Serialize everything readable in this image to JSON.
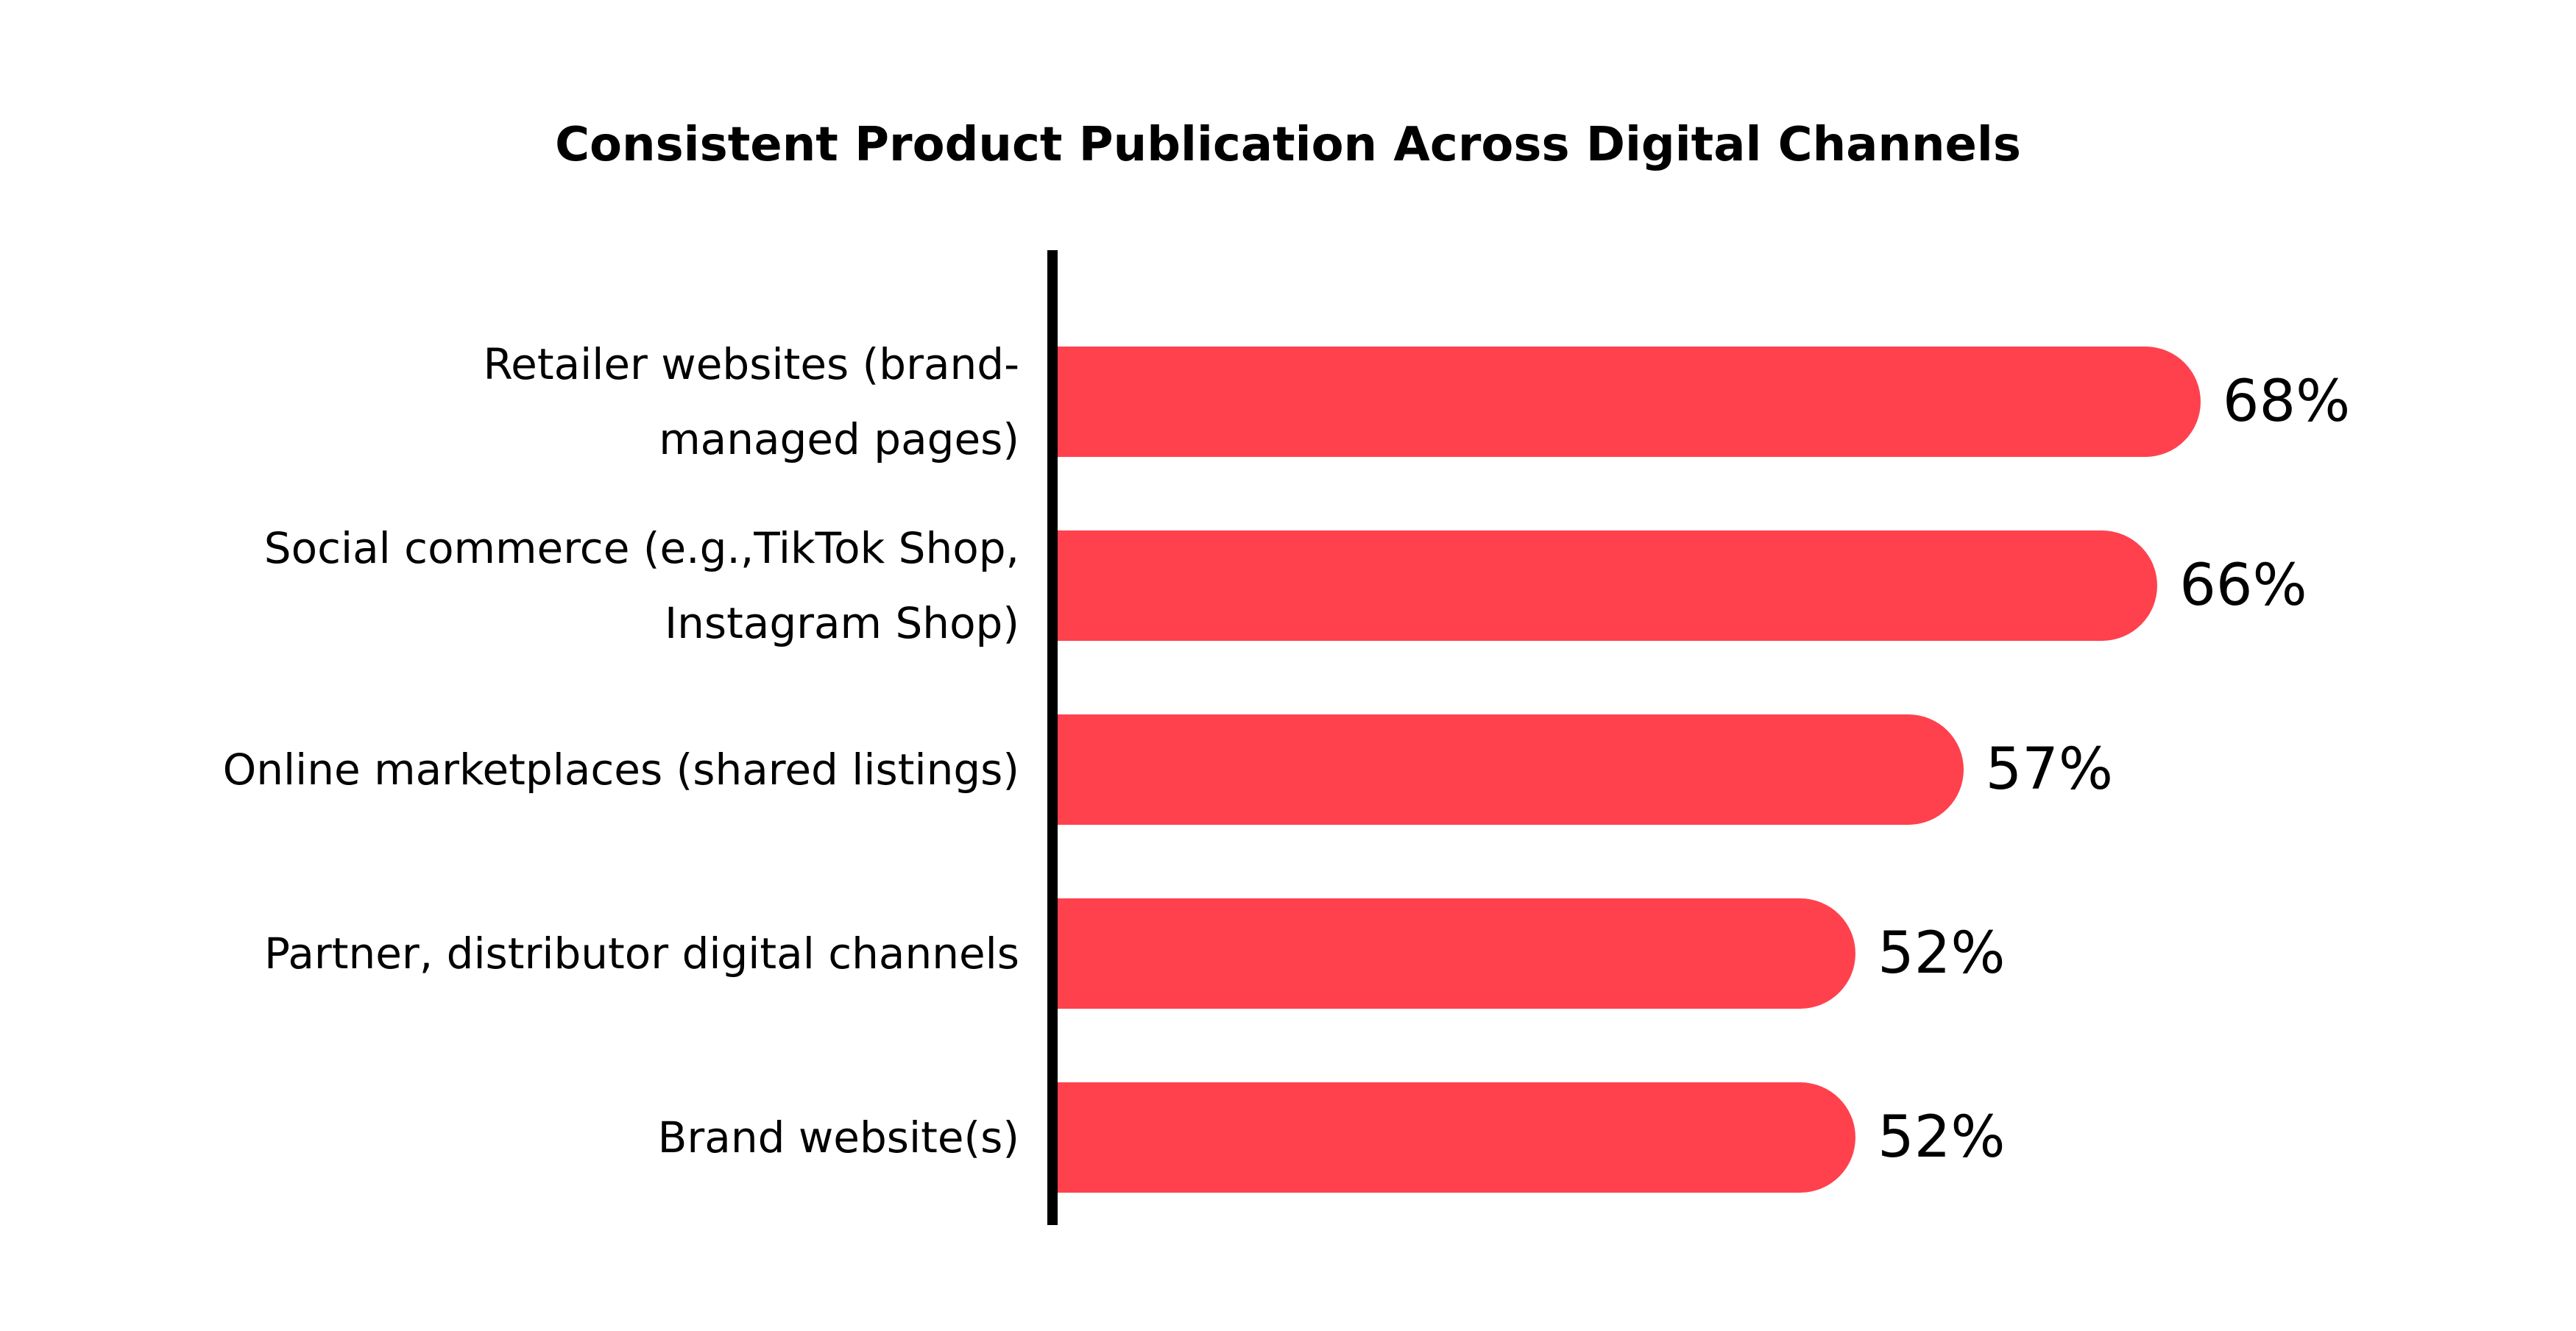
{
  "chart_data": {
    "type": "bar",
    "orientation": "horizontal",
    "title": "Consistent Product Publication Across Digital Channels",
    "categories": [
      "Retailer websites (brand-managed pages)",
      "Social commerce (e.g.,TikTok Shop, Instagram Shop)",
      "Online marketplaces (shared listings)",
      "Partner, distributor digital channels",
      "Brand website(s)"
    ],
    "values": [
      68,
      66,
      57,
      52,
      52
    ],
    "data_labels": [
      "68%",
      "66%",
      "57%",
      "52%",
      "52%"
    ],
    "xlabel": "",
    "ylabel": "",
    "grid": false,
    "bar_color": "#FF414D"
  }
}
